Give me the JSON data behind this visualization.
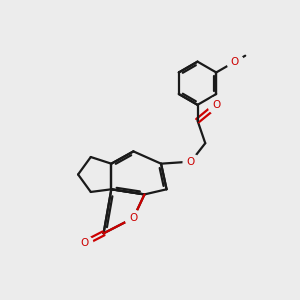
{
  "bg": "#ececec",
  "bc": "#1a1a1a",
  "oc": "#cc0000",
  "lw": 1.6,
  "BL": 0.72
}
